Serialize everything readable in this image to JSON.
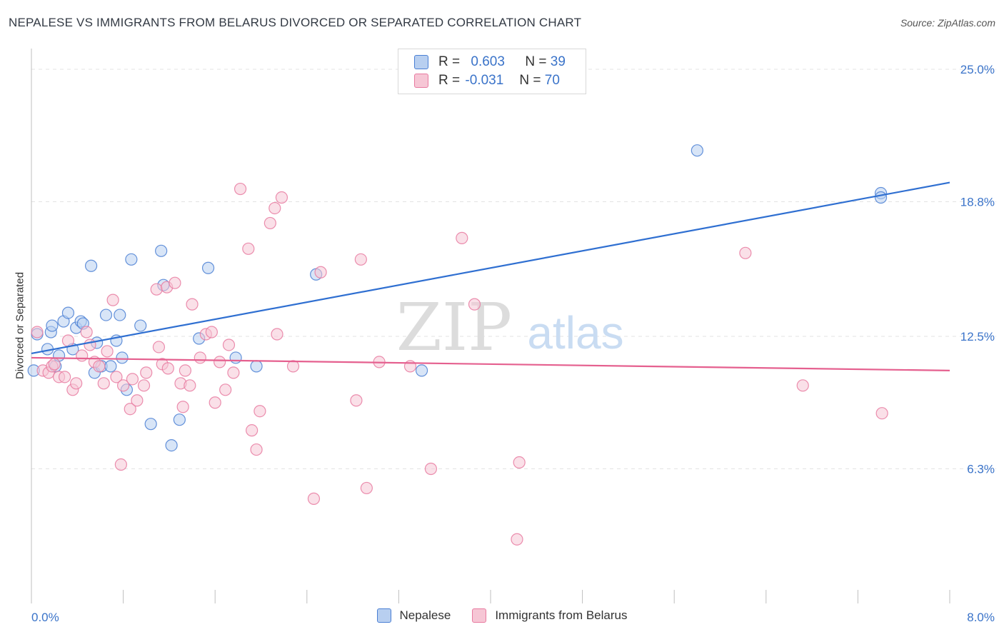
{
  "header": {
    "title": "NEPALESE VS IMMIGRANTS FROM BELARUS DIVORCED OR SEPARATED CORRELATION CHART",
    "source": "Source: ZipAtlas.com"
  },
  "legend_top": {
    "rows": [
      {
        "r_label": "R =",
        "r_value": "0.603",
        "n_label": "N =",
        "n_value": "39"
      },
      {
        "r_label": "R =",
        "r_value": "-0.031",
        "n_label": "N =",
        "n_value": "70"
      }
    ]
  },
  "legend_bottom": {
    "items": [
      "Nepalese",
      "Immigrants from Belarus"
    ]
  },
  "watermark": {
    "zip": "ZIP",
    "atlas": "atlas"
  },
  "chart_data": {
    "type": "scatter",
    "ylabel": "Divorced or Separated",
    "xlim": [
      0,
      8
    ],
    "ylim": [
      0,
      25
    ],
    "x_tick_labels": [
      "0.0%",
      "8.0%"
    ],
    "y_ticks": [
      6.3,
      12.5,
      18.8,
      25.0
    ],
    "y_tick_labels": [
      "6.3%",
      "12.5%",
      "18.8%",
      "25.0%"
    ],
    "grid": true,
    "series": [
      {
        "name": "Nepalese",
        "color": "#4a7fd4",
        "fill": "#b8cff0",
        "trend": {
          "x0": 0.0,
          "y0": 11.7,
          "x1": 8.0,
          "y1": 19.7
        },
        "points": [
          [
            0.02,
            10.9
          ],
          [
            0.14,
            11.9
          ],
          [
            0.17,
            12.7
          ],
          [
            0.18,
            13.0
          ],
          [
            0.21,
            11.1
          ],
          [
            0.24,
            11.6
          ],
          [
            0.28,
            13.2
          ],
          [
            0.32,
            13.6
          ],
          [
            0.36,
            11.9
          ],
          [
            0.39,
            12.9
          ],
          [
            0.43,
            13.2
          ],
          [
            0.45,
            13.1
          ],
          [
            0.52,
            15.8
          ],
          [
            0.55,
            10.8
          ],
          [
            0.57,
            12.2
          ],
          [
            0.61,
            11.1
          ],
          [
            0.65,
            13.5
          ],
          [
            0.69,
            11.1
          ],
          [
            0.74,
            12.3
          ],
          [
            0.77,
            13.5
          ],
          [
            0.79,
            11.5
          ],
          [
            0.83,
            10.0
          ],
          [
            0.87,
            16.1
          ],
          [
            0.95,
            13.0
          ],
          [
            1.04,
            8.4
          ],
          [
            1.13,
            16.5
          ],
          [
            1.15,
            14.9
          ],
          [
            1.22,
            7.4
          ],
          [
            1.29,
            8.6
          ],
          [
            1.46,
            12.4
          ],
          [
            1.54,
            15.7
          ],
          [
            1.78,
            11.5
          ],
          [
            1.96,
            11.1
          ],
          [
            2.48,
            15.4
          ],
          [
            3.4,
            10.9
          ],
          [
            5.8,
            21.2
          ],
          [
            7.4,
            19.2
          ],
          [
            7.4,
            19.0
          ],
          [
            0.05,
            12.6
          ]
        ]
      },
      {
        "name": "Immigrants from Belarus",
        "color": "#e87aa0",
        "fill": "#f6c6d5",
        "trend": {
          "x0": 0.0,
          "y0": 11.5,
          "x1": 8.0,
          "y1": 10.9
        },
        "points": [
          [
            0.05,
            12.7
          ],
          [
            0.1,
            10.9
          ],
          [
            0.15,
            10.8
          ],
          [
            0.18,
            11.1
          ],
          [
            0.2,
            11.2
          ],
          [
            0.24,
            10.6
          ],
          [
            0.29,
            10.6
          ],
          [
            0.32,
            12.3
          ],
          [
            0.36,
            10.0
          ],
          [
            0.39,
            10.3
          ],
          [
            0.44,
            11.6
          ],
          [
            0.48,
            12.7
          ],
          [
            0.51,
            12.1
          ],
          [
            0.55,
            11.3
          ],
          [
            0.59,
            11.1
          ],
          [
            0.63,
            10.3
          ],
          [
            0.66,
            11.8
          ],
          [
            0.71,
            14.2
          ],
          [
            0.74,
            10.6
          ],
          [
            0.78,
            6.5
          ],
          [
            0.8,
            10.2
          ],
          [
            0.86,
            9.1
          ],
          [
            0.88,
            10.5
          ],
          [
            0.92,
            9.5
          ],
          [
            0.98,
            10.2
          ],
          [
            1.0,
            10.8
          ],
          [
            1.09,
            14.7
          ],
          [
            1.11,
            12.0
          ],
          [
            1.14,
            11.2
          ],
          [
            1.18,
            14.8
          ],
          [
            1.25,
            15.0
          ],
          [
            1.3,
            10.3
          ],
          [
            1.32,
            9.2
          ],
          [
            1.34,
            10.9
          ],
          [
            1.38,
            10.2
          ],
          [
            1.4,
            14.0
          ],
          [
            1.47,
            11.5
          ],
          [
            1.52,
            12.6
          ],
          [
            1.57,
            12.7
          ],
          [
            1.6,
            9.4
          ],
          [
            1.64,
            11.3
          ],
          [
            1.69,
            10.0
          ],
          [
            1.72,
            12.1
          ],
          [
            1.76,
            10.8
          ],
          [
            1.82,
            19.4
          ],
          [
            1.89,
            16.6
          ],
          [
            1.92,
            8.1
          ],
          [
            1.96,
            7.2
          ],
          [
            1.99,
            9.0
          ],
          [
            2.08,
            17.8
          ],
          [
            2.12,
            18.5
          ],
          [
            2.14,
            12.6
          ],
          [
            2.18,
            19.0
          ],
          [
            2.28,
            11.1
          ],
          [
            2.46,
            4.9
          ],
          [
            2.52,
            15.5
          ],
          [
            2.83,
            9.5
          ],
          [
            2.87,
            16.1
          ],
          [
            2.92,
            5.4
          ],
          [
            3.03,
            11.3
          ],
          [
            3.3,
            11.1
          ],
          [
            3.48,
            6.3
          ],
          [
            3.75,
            17.1
          ],
          [
            3.86,
            14.0
          ],
          [
            4.23,
            3.0
          ],
          [
            4.25,
            6.6
          ],
          [
            6.22,
            16.4
          ],
          [
            6.72,
            10.2
          ],
          [
            7.41,
            8.9
          ],
          [
            1.19,
            11.0
          ]
        ]
      }
    ]
  }
}
